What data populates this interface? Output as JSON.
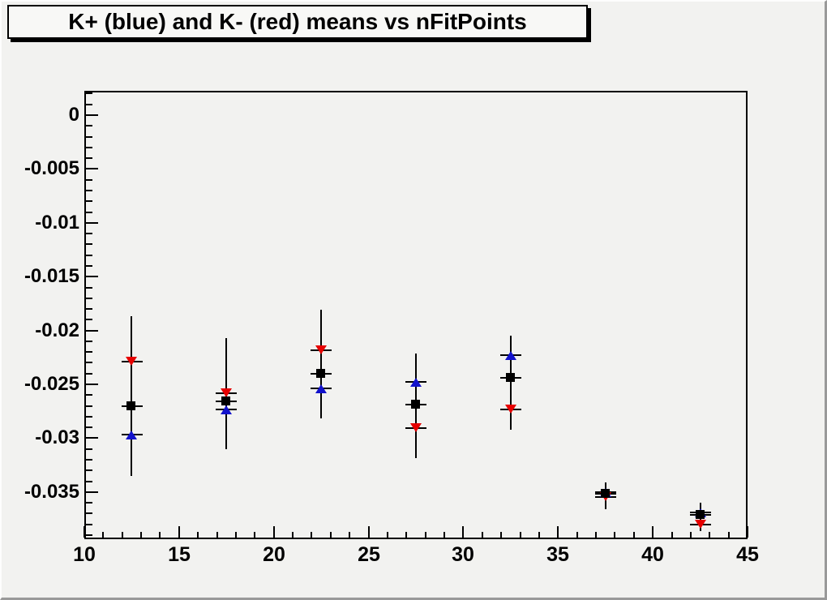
{
  "title": "K+ (blue) and K- (red) means vs nFitPoints",
  "colors": {
    "kplus_blue": "#1212cc",
    "kminus_red": "#e60000",
    "mean_black": "#000000",
    "canvas_bg": "#f2f2f0",
    "title_bg": "#f8f8f6",
    "axis": "#000000"
  },
  "chart_data": {
    "type": "scatter",
    "title": "K+ (blue) and K- (red) means vs nFitPoints",
    "xlabel": "",
    "ylabel": "",
    "grid": false,
    "legend": "none",
    "xlim": [
      10,
      45
    ],
    "ylim": [
      -0.03938,
      0.00226
    ],
    "x_minor_step": 1,
    "x_major_step": 5,
    "y_minor_step": 0.001,
    "y_major_step": 0.005,
    "x_major_ticks": [
      10,
      15,
      20,
      25,
      30,
      35,
      40,
      45
    ],
    "x_tick_labels": [
      "10",
      "15",
      "20",
      "25",
      "30",
      "35",
      "40",
      "45"
    ],
    "y_label_values": [
      0,
      -0.005,
      -0.01,
      -0.015,
      -0.02,
      -0.025,
      -0.03,
      -0.035
    ],
    "y_tick_labels": [
      "0",
      "-0.005",
      "-0.01",
      "-0.015",
      "-0.02",
      "-0.025",
      "-0.03",
      "-0.035"
    ],
    "x": [
      12.5,
      17.5,
      22.5,
      27.5,
      32.5,
      37.5,
      42.5
    ],
    "xerr": 0.55,
    "series": [
      {
        "name": "K+ (blue)",
        "color_key": "kplus_blue",
        "marker": "triangle-up",
        "y": [
          -0.0297,
          -0.0273,
          -0.0254,
          -0.0248,
          -0.0223,
          -0.035,
          -0.0369
        ]
      },
      {
        "name": "K- (red)",
        "color_key": "kminus_red",
        "marker": "triangle-down",
        "y": [
          -0.0229,
          -0.0258,
          -0.0218,
          -0.0291,
          -0.0273,
          -0.0355,
          -0.038
        ]
      },
      {
        "name": "mean (black)",
        "color_key": "mean_black",
        "marker": "square",
        "y": [
          -0.027,
          -0.0266,
          -0.024,
          -0.0269,
          -0.0244,
          -0.0352,
          -0.0371
        ]
      }
    ],
    "error_bar_top": [
      -0.0187,
      -0.0207,
      -0.0181,
      -0.0221,
      -0.0205,
      -0.0341,
      -0.036
    ],
    "error_bar_bottom": [
      -0.0335,
      -0.031,
      -0.0282,
      -0.0318,
      -0.0292,
      -0.0366,
      -0.0386
    ]
  }
}
